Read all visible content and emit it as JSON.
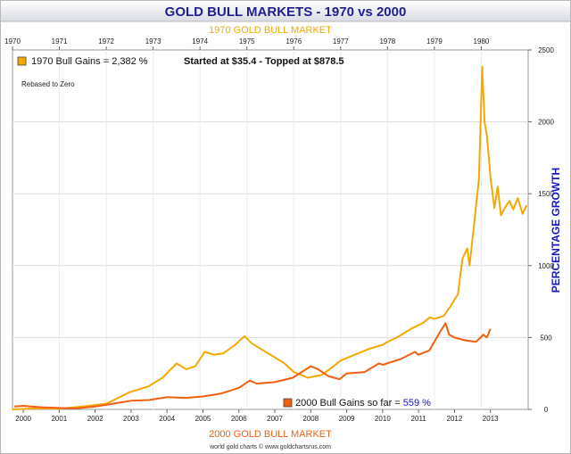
{
  "chart_data": {
    "type": "line",
    "title": "GOLD BULL MARKETS - 1970 vs 2000",
    "top_axis_title": "1970 GOLD BULL MARKET",
    "bottom_axis_title": "2000 GOLD BULL MARKET",
    "ylabel": "PERCENTAGE GROWTH",
    "note": "Rebased to Zero",
    "source": "world gold charts © www.goldchartsrus.com",
    "legend_top": {
      "label": "1970 Bull Gains = 2,382 %",
      "extra": "Started at $35.4 - Topped at $878.5"
    },
    "legend_bottom": {
      "label": "2000 Bull Gains so far = ",
      "value": "559 %"
    },
    "top_ticks": [
      "1970",
      "1971",
      "1972",
      "1973",
      "1974",
      "1975",
      "1976",
      "1977",
      "1978",
      "1979",
      "1980"
    ],
    "bottom_ticks": [
      "2000",
      "2001",
      "2002",
      "2003",
      "2004",
      "2005",
      "2006",
      "2007",
      "2008",
      "2009",
      "2010",
      "2011",
      "2012",
      "2013"
    ],
    "y_ticks": [
      "0",
      "500",
      "1000",
      "1500",
      "2000",
      "2500"
    ],
    "ylim": [
      0,
      2500
    ],
    "xlim_top_years": [
      1970.0,
      1981.0
    ],
    "xlim_bottom_years": [
      1999.7,
      2014.05
    ],
    "grid": true,
    "colors": {
      "series_1970": "#f5a800",
      "series_2000": "#f06010",
      "title": "#1f1f8f",
      "ylabel": "#1515cc",
      "value_highlight": "#1515cc"
    },
    "series": [
      {
        "name": "1970 Bull Gains",
        "axis": "top",
        "points": [
          [
            1970.0,
            0
          ],
          [
            1970.5,
            8
          ],
          [
            1971.0,
            5
          ],
          [
            1971.5,
            20
          ],
          [
            1972.0,
            40
          ],
          [
            1972.5,
            120
          ],
          [
            1972.9,
            160
          ],
          [
            1973.2,
            220
          ],
          [
            1973.5,
            320
          ],
          [
            1973.7,
            280
          ],
          [
            1973.9,
            300
          ],
          [
            1974.1,
            400
          ],
          [
            1974.3,
            380
          ],
          [
            1974.5,
            390
          ],
          [
            1974.75,
            450
          ],
          [
            1974.95,
            510
          ],
          [
            1975.1,
            460
          ],
          [
            1975.3,
            420
          ],
          [
            1975.5,
            380
          ],
          [
            1975.8,
            320
          ],
          [
            1976.0,
            260
          ],
          [
            1976.3,
            220
          ],
          [
            1976.6,
            240
          ],
          [
            1976.85,
            300
          ],
          [
            1977.0,
            340
          ],
          [
            1977.3,
            380
          ],
          [
            1977.6,
            420
          ],
          [
            1977.9,
            450
          ],
          [
            1978.0,
            470
          ],
          [
            1978.2,
            500
          ],
          [
            1978.5,
            560
          ],
          [
            1978.75,
            600
          ],
          [
            1978.9,
            640
          ],
          [
            1979.0,
            630
          ],
          [
            1979.2,
            650
          ],
          [
            1979.35,
            720
          ],
          [
            1979.5,
            800
          ],
          [
            1979.6,
            1050
          ],
          [
            1979.7,
            1120
          ],
          [
            1979.75,
            1000
          ],
          [
            1979.85,
            1300
          ],
          [
            1979.95,
            1600
          ],
          [
            1980.02,
            2382
          ],
          [
            1980.07,
            2000
          ],
          [
            1980.12,
            1900
          ],
          [
            1980.2,
            1600
          ],
          [
            1980.28,
            1400
          ],
          [
            1980.35,
            1550
          ],
          [
            1980.42,
            1350
          ],
          [
            1980.5,
            1400
          ],
          [
            1980.6,
            1450
          ],
          [
            1980.68,
            1390
          ],
          [
            1980.78,
            1470
          ],
          [
            1980.88,
            1360
          ],
          [
            1980.97,
            1420
          ]
        ]
      },
      {
        "name": "2000 Bull Gains",
        "axis": "bottom",
        "points": [
          [
            1999.75,
            20
          ],
          [
            2000.0,
            25
          ],
          [
            2000.5,
            15
          ],
          [
            2001.0,
            10
          ],
          [
            2001.5,
            8
          ],
          [
            2002.0,
            20
          ],
          [
            2002.5,
            40
          ],
          [
            2003.0,
            60
          ],
          [
            2003.5,
            65
          ],
          [
            2004.0,
            85
          ],
          [
            2004.5,
            80
          ],
          [
            2005.0,
            90
          ],
          [
            2005.5,
            110
          ],
          [
            2006.0,
            150
          ],
          [
            2006.3,
            200
          ],
          [
            2006.5,
            180
          ],
          [
            2007.0,
            190
          ],
          [
            2007.5,
            220
          ],
          [
            2008.0,
            300
          ],
          [
            2008.2,
            280
          ],
          [
            2008.5,
            230
          ],
          [
            2008.8,
            210
          ],
          [
            2009.0,
            250
          ],
          [
            2009.5,
            260
          ],
          [
            2009.9,
            320
          ],
          [
            2010.0,
            310
          ],
          [
            2010.5,
            350
          ],
          [
            2010.9,
            400
          ],
          [
            2011.0,
            380
          ],
          [
            2011.3,
            410
          ],
          [
            2011.6,
            540
          ],
          [
            2011.75,
            600
          ],
          [
            2011.85,
            520
          ],
          [
            2012.0,
            500
          ],
          [
            2012.3,
            480
          ],
          [
            2012.6,
            470
          ],
          [
            2012.8,
            520
          ],
          [
            2012.9,
            500
          ],
          [
            2013.0,
            560
          ]
        ]
      }
    ]
  }
}
